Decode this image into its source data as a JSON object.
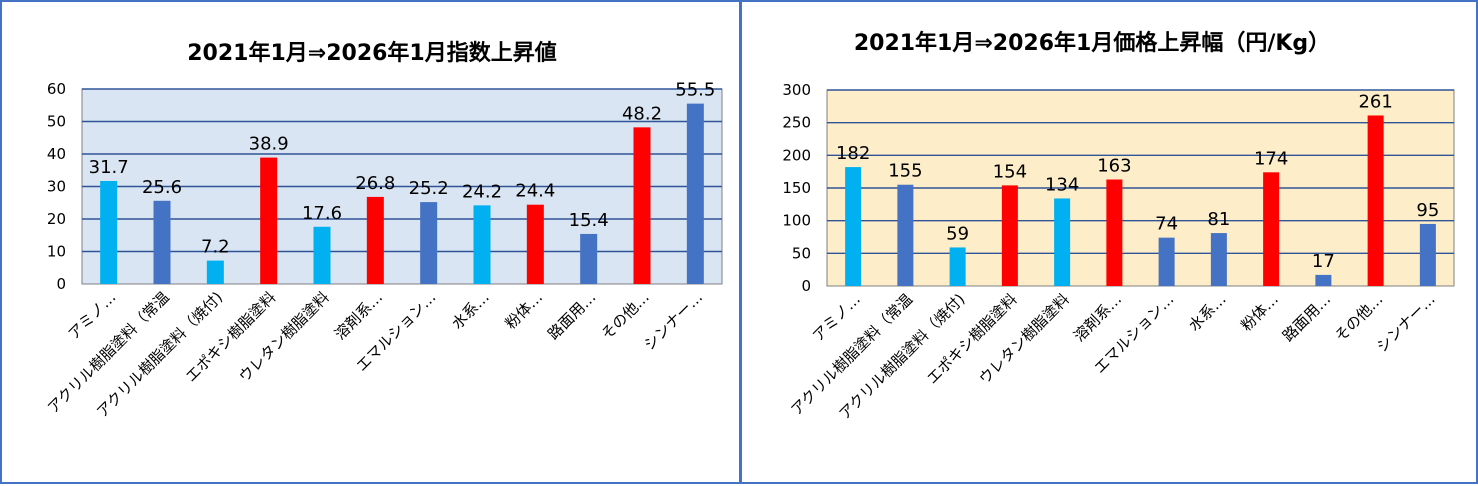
{
  "chart_data": [
    {
      "type": "bar",
      "title": "2021年1月⇒2026年1月指数上昇値",
      "ylim": [
        0,
        60
      ],
      "yticks": [
        0,
        10,
        20,
        30,
        40,
        50,
        60
      ],
      "grid": true,
      "plot_background": "#dae5f3",
      "categories": [
        "アミノ…",
        "アクリル樹脂塗料（常温",
        "アクリル樹脂塗料（焼付)",
        "エポキシ樹脂塗料",
        "ウレタン樹脂塗料",
        "溶剤系…",
        "エマルション…",
        "水系…",
        "粉体…",
        "路面用…",
        "その他…",
        "シンナー…"
      ],
      "values": [
        31.7,
        25.6,
        7.2,
        38.9,
        17.6,
        26.8,
        25.2,
        24.2,
        24.4,
        15.4,
        48.2,
        55.5
      ],
      "data_labels": [
        "31.7",
        "25.6",
        "7.2",
        "38.9",
        "17.6",
        "26.8",
        "25.2",
        "24.2",
        "24.4",
        "15.4",
        "48.2",
        "55.5"
      ],
      "bar_colors": [
        "#00b0f0",
        "#4472c4",
        "#00b0f0",
        "#ff0000",
        "#00b0f0",
        "#ff0000",
        "#4472c4",
        "#00b0f0",
        "#ff0000",
        "#4472c4",
        "#ff0000",
        "#4472c4"
      ]
    },
    {
      "type": "bar",
      "title": "2021年1月⇒2026年1月価格上昇幅（円/Kg）",
      "ylim": [
        0,
        300
      ],
      "yticks": [
        0,
        50,
        100,
        150,
        200,
        250,
        300
      ],
      "grid": true,
      "plot_background": "#fdedc8",
      "categories": [
        "アミノ…",
        "アクリル樹脂塗料（常温",
        "アクリル樹脂塗料（焼付)",
        "エポキシ樹脂塗料",
        "ウレタン樹脂塗料",
        "溶剤系…",
        "エマルション…",
        "水系…",
        "粉体…",
        "路面用…",
        "その他…",
        "シンナー…"
      ],
      "values": [
        182,
        155,
        59,
        154,
        134,
        163,
        74,
        81,
        174,
        17,
        261,
        95
      ],
      "data_labels": [
        "182",
        "155",
        "59",
        "154",
        "134",
        "163",
        "74",
        "81",
        "174",
        "17",
        "261",
        "95"
      ],
      "bar_colors": [
        "#00b0f0",
        "#4472c4",
        "#00b0f0",
        "#ff0000",
        "#00b0f0",
        "#ff0000",
        "#4472c4",
        "#4472c4",
        "#ff0000",
        "#4472c4",
        "#ff0000",
        "#4472c4"
      ]
    }
  ]
}
